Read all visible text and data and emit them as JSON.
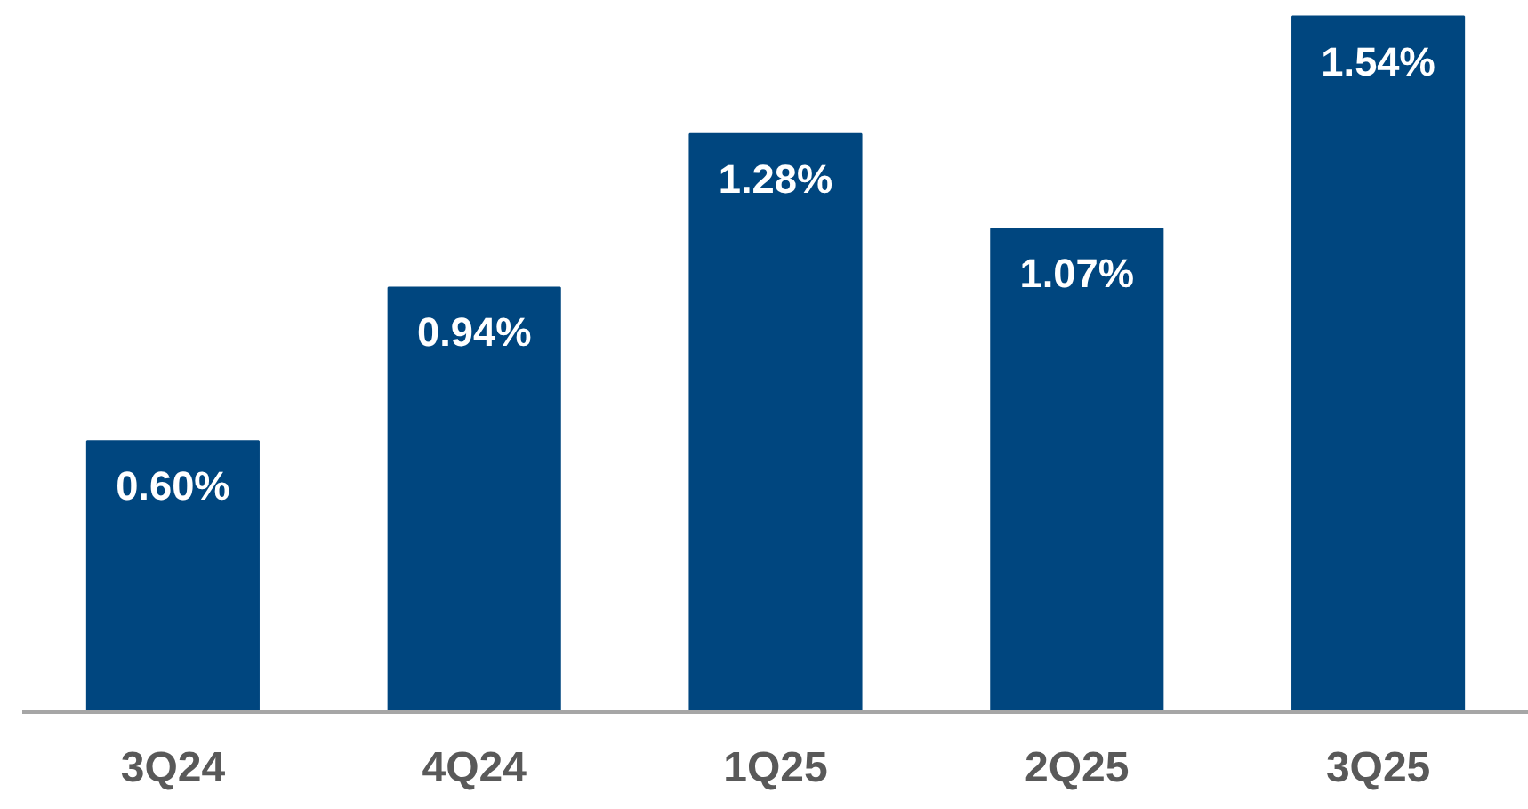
{
  "chart_data": {
    "type": "bar",
    "categories": [
      "3Q24",
      "4Q24",
      "1Q25",
      "2Q25",
      "3Q25"
    ],
    "values": [
      0.6,
      0.94,
      1.28,
      1.07,
      1.54
    ],
    "value_labels": [
      "0.60%",
      "0.94%",
      "1.28%",
      "1.07%",
      "1.54%"
    ],
    "color": "#00467f",
    "tick_labels": "x",
    "grid": false
  }
}
